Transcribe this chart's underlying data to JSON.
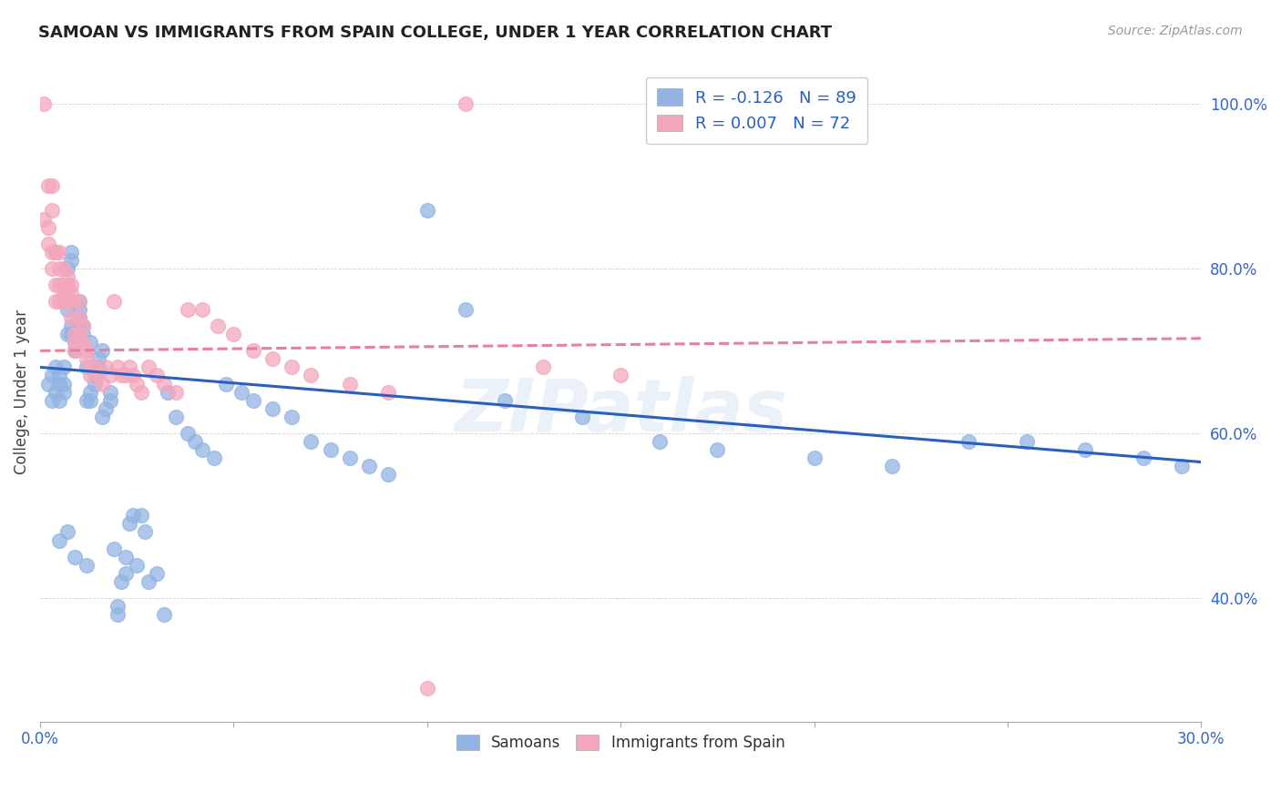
{
  "title": "SAMOAN VS IMMIGRANTS FROM SPAIN COLLEGE, UNDER 1 YEAR CORRELATION CHART",
  "source": "Source: ZipAtlas.com",
  "ylabel": "College, Under 1 year",
  "legend_samoans": "R = -0.126   N = 89",
  "legend_spain": "R = 0.007   N = 72",
  "legend_label1": "Samoans",
  "legend_label2": "Immigrants from Spain",
  "blue_color": "#92b4e3",
  "pink_color": "#f4a7bc",
  "blue_line_color": "#2b5fbd",
  "pink_line_color": "#e87fa0",
  "watermark": "ZIPatlas",
  "axis_color": "#3366cc",
  "samoans_x": [
    0.002,
    0.003,
    0.003,
    0.004,
    0.004,
    0.005,
    0.005,
    0.005,
    0.006,
    0.006,
    0.006,
    0.007,
    0.007,
    0.007,
    0.007,
    0.008,
    0.008,
    0.008,
    0.008,
    0.009,
    0.009,
    0.009,
    0.01,
    0.01,
    0.01,
    0.01,
    0.011,
    0.011,
    0.012,
    0.012,
    0.013,
    0.013,
    0.013,
    0.014,
    0.014,
    0.015,
    0.015,
    0.016,
    0.016,
    0.017,
    0.018,
    0.018,
    0.019,
    0.02,
    0.02,
    0.021,
    0.022,
    0.022,
    0.023,
    0.024,
    0.025,
    0.026,
    0.027,
    0.028,
    0.03,
    0.032,
    0.033,
    0.035,
    0.038,
    0.04,
    0.042,
    0.045,
    0.048,
    0.052,
    0.055,
    0.06,
    0.065,
    0.07,
    0.075,
    0.08,
    0.085,
    0.09,
    0.1,
    0.11,
    0.12,
    0.14,
    0.16,
    0.175,
    0.2,
    0.22,
    0.24,
    0.255,
    0.27,
    0.285,
    0.295,
    0.005,
    0.007,
    0.009,
    0.012
  ],
  "samoans_y": [
    0.66,
    0.64,
    0.67,
    0.65,
    0.68,
    0.66,
    0.67,
    0.64,
    0.66,
    0.65,
    0.68,
    0.72,
    0.75,
    0.76,
    0.8,
    0.72,
    0.73,
    0.81,
    0.82,
    0.7,
    0.71,
    0.72,
    0.73,
    0.74,
    0.75,
    0.76,
    0.72,
    0.73,
    0.64,
    0.68,
    0.71,
    0.64,
    0.65,
    0.66,
    0.67,
    0.68,
    0.69,
    0.7,
    0.62,
    0.63,
    0.64,
    0.65,
    0.46,
    0.38,
    0.39,
    0.42,
    0.43,
    0.45,
    0.49,
    0.5,
    0.44,
    0.5,
    0.48,
    0.42,
    0.43,
    0.38,
    0.65,
    0.62,
    0.6,
    0.59,
    0.58,
    0.57,
    0.66,
    0.65,
    0.64,
    0.63,
    0.62,
    0.59,
    0.58,
    0.57,
    0.56,
    0.55,
    0.87,
    0.75,
    0.64,
    0.62,
    0.59,
    0.58,
    0.57,
    0.56,
    0.59,
    0.59,
    0.58,
    0.57,
    0.56,
    0.47,
    0.48,
    0.45,
    0.44
  ],
  "spain_x": [
    0.001,
    0.001,
    0.002,
    0.002,
    0.002,
    0.003,
    0.003,
    0.003,
    0.003,
    0.004,
    0.004,
    0.004,
    0.004,
    0.005,
    0.005,
    0.005,
    0.005,
    0.006,
    0.006,
    0.006,
    0.006,
    0.007,
    0.007,
    0.007,
    0.007,
    0.008,
    0.008,
    0.008,
    0.008,
    0.009,
    0.009,
    0.009,
    0.01,
    0.01,
    0.01,
    0.011,
    0.011,
    0.012,
    0.012,
    0.013,
    0.013,
    0.014,
    0.015,
    0.016,
    0.017,
    0.018,
    0.019,
    0.02,
    0.021,
    0.022,
    0.023,
    0.024,
    0.025,
    0.026,
    0.028,
    0.03,
    0.032,
    0.035,
    0.038,
    0.042,
    0.046,
    0.05,
    0.055,
    0.06,
    0.065,
    0.07,
    0.08,
    0.09,
    0.1,
    0.11,
    0.13,
    0.15
  ],
  "spain_y": [
    1.0,
    0.86,
    0.9,
    0.85,
    0.83,
    0.9,
    0.87,
    0.82,
    0.8,
    0.82,
    0.78,
    0.82,
    0.76,
    0.82,
    0.8,
    0.78,
    0.76,
    0.8,
    0.78,
    0.77,
    0.76,
    0.79,
    0.78,
    0.77,
    0.76,
    0.78,
    0.77,
    0.76,
    0.74,
    0.72,
    0.71,
    0.7,
    0.76,
    0.74,
    0.72,
    0.73,
    0.71,
    0.7,
    0.69,
    0.68,
    0.67,
    0.68,
    0.67,
    0.66,
    0.68,
    0.67,
    0.76,
    0.68,
    0.67,
    0.67,
    0.68,
    0.67,
    0.66,
    0.65,
    0.68,
    0.67,
    0.66,
    0.65,
    0.75,
    0.75,
    0.73,
    0.72,
    0.7,
    0.69,
    0.68,
    0.67,
    0.66,
    0.65,
    0.29,
    1.0,
    0.68,
    0.67
  ],
  "xlim": [
    0.0,
    0.3
  ],
  "ylim": [
    0.25,
    1.05
  ],
  "blue_trend_x": [
    0.0,
    0.3
  ],
  "blue_trend_y": [
    0.68,
    0.565
  ],
  "pink_trend_x": [
    0.0,
    0.3
  ],
  "pink_trend_y": [
    0.7,
    0.715
  ],
  "xticks": [
    0.0,
    0.05,
    0.1,
    0.15,
    0.2,
    0.25,
    0.3
  ],
  "yticks": [
    0.4,
    0.6,
    0.8,
    1.0
  ]
}
